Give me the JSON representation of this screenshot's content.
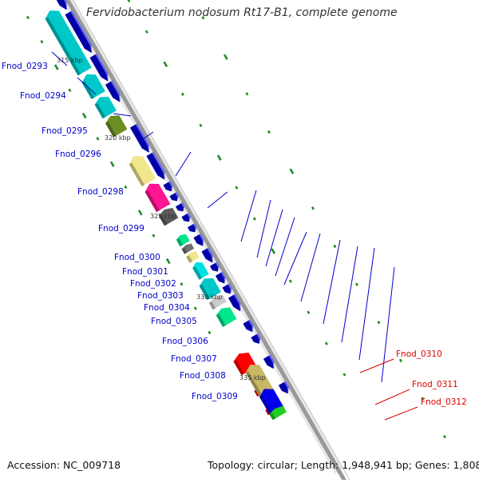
{
  "title": "Fervidobacterium nodosum Rt17-B1, complete genome",
  "footer": {
    "accession": "Accession: NC_009718",
    "topology": "Topology: circular; Length: 1,948,941 bp; Genes: 1,808"
  },
  "colors": {
    "background": "#ffffff",
    "backbone": "#999999",
    "cds_strand": "#0000ee",
    "tick": "#228b22",
    "label_left": "#0000cc",
    "label_right": "#dd0000",
    "kbp_label": "#333333"
  },
  "kbp_ticks": [
    "315 kbp",
    "320 kbp",
    "325 kbp",
    "330 kbp",
    "335 kbp"
  ],
  "genes_left": [
    {
      "label": "Fnod_0293",
      "color": "#00c8c8"
    },
    {
      "label": "Fnod_0294",
      "color": "#00c8c8"
    },
    {
      "label": "Fnod_0295",
      "color": "#00c8c8"
    },
    {
      "label": "Fnod_0296",
      "color": "#6b8e23"
    },
    {
      "label": "Fnod_0298",
      "color": "#f0e68c"
    },
    {
      "label": "Fnod_0299",
      "color": "#ff1493"
    },
    {
      "label": "Fnod_0300",
      "color": "#5a5a5a"
    },
    {
      "label": "Fnod_0301",
      "color": "#00e68c"
    },
    {
      "label": "Fnod_0302",
      "color": "#707070"
    },
    {
      "label": "Fnod_0303",
      "color": "#f0e68c"
    },
    {
      "label": "Fnod_0304",
      "color": "#00e0e0"
    },
    {
      "label": "Fnod_0305",
      "color": "#00c8c8"
    },
    {
      "label": "Fnod_0306",
      "color": "#cccccc"
    },
    {
      "label": "Fnod_0307",
      "color": "#00e68c"
    },
    {
      "label": "Fnod_0308",
      "color": "#0000ee"
    },
    {
      "label": "Fnod_0309",
      "color": "#0000ee"
    }
  ],
  "genes_right": [
    {
      "label": "Fnod_0310",
      "color": "#c8b864"
    },
    {
      "label": "Fnod_0311",
      "color": "#0000ee"
    },
    {
      "label": "Fnod_0312",
      "color": "#22cc22"
    }
  ]
}
